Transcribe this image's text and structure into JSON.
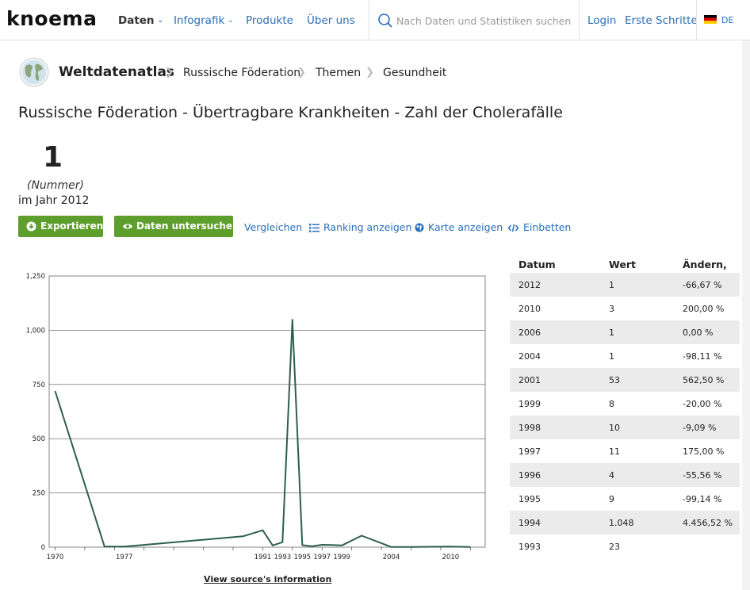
{
  "header": {
    "logo": "knoema",
    "nav": [
      {
        "label": "Daten",
        "dropdown": true,
        "active": true
      },
      {
        "label": "Infografik",
        "dropdown": true,
        "active": false
      },
      {
        "label": "Produkte",
        "dropdown": false,
        "active": false
      },
      {
        "label": "Über uns",
        "dropdown": false,
        "active": false
      }
    ],
    "search_placeholder": "Nach Daten und Statistiken suchen",
    "login": "Login",
    "getting_started": "Erste Schritte",
    "language": "DE",
    "accent": "#2a6ebb"
  },
  "breadcrumb": {
    "root": "Weltdatenatlas",
    "items": [
      "Russische Föderation",
      "Themen",
      "Gesundheit"
    ]
  },
  "page_title": "Russische Föderation - Übertragbare Krankheiten - Zahl der Cholerafälle",
  "summary": {
    "value": "1",
    "unit": "(Nummer)",
    "year": "im Jahr 2012"
  },
  "actions": {
    "export": "Exportieren",
    "explore": "Daten untersuchen",
    "compare": "Vergleichen",
    "ranking": "Ranking anzeigen",
    "map": "Karte anzeigen",
    "embed": "Einbetten",
    "button_color": "#5e9e2c"
  },
  "chart_data": {
    "type": "line",
    "x": [
      1970,
      1975,
      1977,
      1989,
      1991,
      1992,
      1993,
      1994,
      1995,
      1996,
      1997,
      1998,
      1999,
      2001,
      2004,
      2006,
      2010,
      2012
    ],
    "values": [
      720,
      3,
      3,
      50,
      78,
      8,
      23,
      1048,
      9,
      4,
      11,
      10,
      8,
      53,
      1,
      1,
      3,
      1
    ],
    "xticks": [
      "1970",
      "1977",
      "1991",
      "1993",
      "1995",
      "1997",
      "1999",
      "2004",
      "2010"
    ],
    "yticks": [
      "0",
      "250",
      "500",
      "750",
      "1,000",
      "1,250"
    ],
    "ylim": [
      0,
      1250
    ],
    "grid": true,
    "line_color": "#2e5e4e",
    "source_link": "View source's information"
  },
  "table": {
    "headers": [
      "Datum",
      "Wert",
      "Ändern, %"
    ],
    "rows": [
      [
        "2012",
        "1",
        "-66,67 %"
      ],
      [
        "2010",
        "3",
        "200,00 %"
      ],
      [
        "2006",
        "1",
        "0,00 %"
      ],
      [
        "2004",
        "1",
        "-98,11 %"
      ],
      [
        "2001",
        "53",
        "562,50 %"
      ],
      [
        "1999",
        "8",
        "-20,00 %"
      ],
      [
        "1998",
        "10",
        "-9,09 %"
      ],
      [
        "1997",
        "11",
        "175,00 %"
      ],
      [
        "1996",
        "4",
        "-55,56 %"
      ],
      [
        "1995",
        "9",
        "-99,14 %"
      ],
      [
        "1994",
        "1.048",
        "4.456,52 %"
      ],
      [
        "1993",
        "23",
        ""
      ]
    ]
  }
}
